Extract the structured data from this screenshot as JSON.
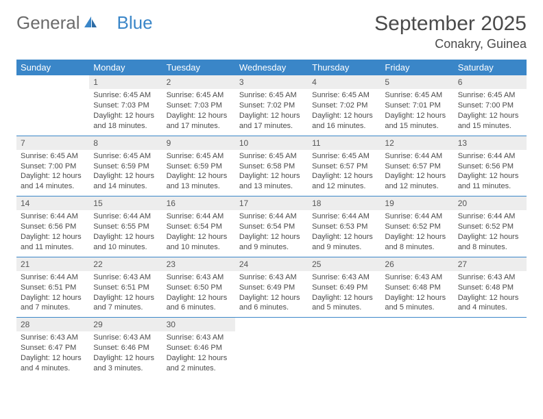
{
  "logo": {
    "text1": "General",
    "text2": "Blue"
  },
  "title": "September 2025",
  "location": "Conakry, Guinea",
  "colors": {
    "header_bg": "#3a86c8",
    "header_text": "#ffffff",
    "daynum_bg": "#ededed",
    "text": "#4a4a4a",
    "rule": "#3a86c8"
  },
  "weekdays": [
    "Sunday",
    "Monday",
    "Tuesday",
    "Wednesday",
    "Thursday",
    "Friday",
    "Saturday"
  ],
  "weeks": [
    [
      {
        "n": "",
        "r": "",
        "s": "",
        "d": ""
      },
      {
        "n": "1",
        "r": "Sunrise: 6:45 AM",
        "s": "Sunset: 7:03 PM",
        "d": "Daylight: 12 hours and 18 minutes."
      },
      {
        "n": "2",
        "r": "Sunrise: 6:45 AM",
        "s": "Sunset: 7:03 PM",
        "d": "Daylight: 12 hours and 17 minutes."
      },
      {
        "n": "3",
        "r": "Sunrise: 6:45 AM",
        "s": "Sunset: 7:02 PM",
        "d": "Daylight: 12 hours and 17 minutes."
      },
      {
        "n": "4",
        "r": "Sunrise: 6:45 AM",
        "s": "Sunset: 7:02 PM",
        "d": "Daylight: 12 hours and 16 minutes."
      },
      {
        "n": "5",
        "r": "Sunrise: 6:45 AM",
        "s": "Sunset: 7:01 PM",
        "d": "Daylight: 12 hours and 15 minutes."
      },
      {
        "n": "6",
        "r": "Sunrise: 6:45 AM",
        "s": "Sunset: 7:00 PM",
        "d": "Daylight: 12 hours and 15 minutes."
      }
    ],
    [
      {
        "n": "7",
        "r": "Sunrise: 6:45 AM",
        "s": "Sunset: 7:00 PM",
        "d": "Daylight: 12 hours and 14 minutes."
      },
      {
        "n": "8",
        "r": "Sunrise: 6:45 AM",
        "s": "Sunset: 6:59 PM",
        "d": "Daylight: 12 hours and 14 minutes."
      },
      {
        "n": "9",
        "r": "Sunrise: 6:45 AM",
        "s": "Sunset: 6:59 PM",
        "d": "Daylight: 12 hours and 13 minutes."
      },
      {
        "n": "10",
        "r": "Sunrise: 6:45 AM",
        "s": "Sunset: 6:58 PM",
        "d": "Daylight: 12 hours and 13 minutes."
      },
      {
        "n": "11",
        "r": "Sunrise: 6:45 AM",
        "s": "Sunset: 6:57 PM",
        "d": "Daylight: 12 hours and 12 minutes."
      },
      {
        "n": "12",
        "r": "Sunrise: 6:44 AM",
        "s": "Sunset: 6:57 PM",
        "d": "Daylight: 12 hours and 12 minutes."
      },
      {
        "n": "13",
        "r": "Sunrise: 6:44 AM",
        "s": "Sunset: 6:56 PM",
        "d": "Daylight: 12 hours and 11 minutes."
      }
    ],
    [
      {
        "n": "14",
        "r": "Sunrise: 6:44 AM",
        "s": "Sunset: 6:56 PM",
        "d": "Daylight: 12 hours and 11 minutes."
      },
      {
        "n": "15",
        "r": "Sunrise: 6:44 AM",
        "s": "Sunset: 6:55 PM",
        "d": "Daylight: 12 hours and 10 minutes."
      },
      {
        "n": "16",
        "r": "Sunrise: 6:44 AM",
        "s": "Sunset: 6:54 PM",
        "d": "Daylight: 12 hours and 10 minutes."
      },
      {
        "n": "17",
        "r": "Sunrise: 6:44 AM",
        "s": "Sunset: 6:54 PM",
        "d": "Daylight: 12 hours and 9 minutes."
      },
      {
        "n": "18",
        "r": "Sunrise: 6:44 AM",
        "s": "Sunset: 6:53 PM",
        "d": "Daylight: 12 hours and 9 minutes."
      },
      {
        "n": "19",
        "r": "Sunrise: 6:44 AM",
        "s": "Sunset: 6:52 PM",
        "d": "Daylight: 12 hours and 8 minutes."
      },
      {
        "n": "20",
        "r": "Sunrise: 6:44 AM",
        "s": "Sunset: 6:52 PM",
        "d": "Daylight: 12 hours and 8 minutes."
      }
    ],
    [
      {
        "n": "21",
        "r": "Sunrise: 6:44 AM",
        "s": "Sunset: 6:51 PM",
        "d": "Daylight: 12 hours and 7 minutes."
      },
      {
        "n": "22",
        "r": "Sunrise: 6:43 AM",
        "s": "Sunset: 6:51 PM",
        "d": "Daylight: 12 hours and 7 minutes."
      },
      {
        "n": "23",
        "r": "Sunrise: 6:43 AM",
        "s": "Sunset: 6:50 PM",
        "d": "Daylight: 12 hours and 6 minutes."
      },
      {
        "n": "24",
        "r": "Sunrise: 6:43 AM",
        "s": "Sunset: 6:49 PM",
        "d": "Daylight: 12 hours and 6 minutes."
      },
      {
        "n": "25",
        "r": "Sunrise: 6:43 AM",
        "s": "Sunset: 6:49 PM",
        "d": "Daylight: 12 hours and 5 minutes."
      },
      {
        "n": "26",
        "r": "Sunrise: 6:43 AM",
        "s": "Sunset: 6:48 PM",
        "d": "Daylight: 12 hours and 5 minutes."
      },
      {
        "n": "27",
        "r": "Sunrise: 6:43 AM",
        "s": "Sunset: 6:48 PM",
        "d": "Daylight: 12 hours and 4 minutes."
      }
    ],
    [
      {
        "n": "28",
        "r": "Sunrise: 6:43 AM",
        "s": "Sunset: 6:47 PM",
        "d": "Daylight: 12 hours and 4 minutes."
      },
      {
        "n": "29",
        "r": "Sunrise: 6:43 AM",
        "s": "Sunset: 6:46 PM",
        "d": "Daylight: 12 hours and 3 minutes."
      },
      {
        "n": "30",
        "r": "Sunrise: 6:43 AM",
        "s": "Sunset: 6:46 PM",
        "d": "Daylight: 12 hours and 2 minutes."
      },
      {
        "n": "",
        "r": "",
        "s": "",
        "d": ""
      },
      {
        "n": "",
        "r": "",
        "s": "",
        "d": ""
      },
      {
        "n": "",
        "r": "",
        "s": "",
        "d": ""
      },
      {
        "n": "",
        "r": "",
        "s": "",
        "d": ""
      }
    ]
  ]
}
